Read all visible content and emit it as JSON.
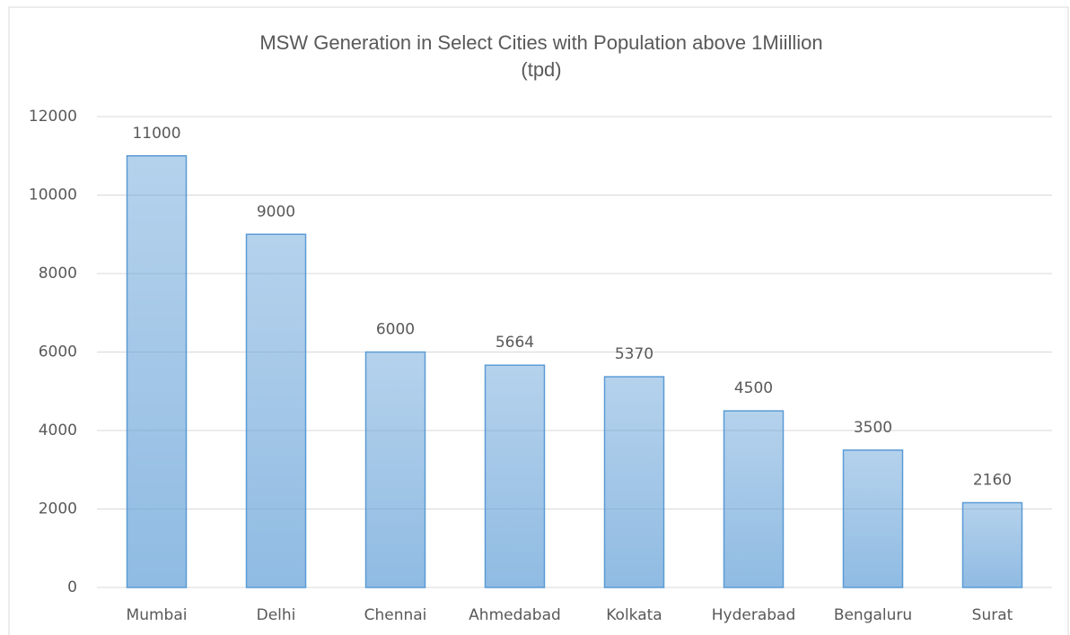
{
  "chart_data": {
    "type": "bar",
    "title": [
      "MSW Generation in Select Cities with Population above 1Miillion",
      "(tpd)"
    ],
    "categories": [
      "Mumbai",
      "Delhi",
      "Chennai",
      "Ahmedabad",
      "Kolkata",
      "Hyderabad",
      "Bengaluru",
      "Surat"
    ],
    "values": [
      11000,
      9000,
      6000,
      5664,
      5370,
      4500,
      3500,
      2160
    ],
    "color": "#5b9bd5",
    "ylim": [
      0,
      12000
    ],
    "yticks": [
      0,
      2000,
      4000,
      6000,
      8000,
      10000,
      12000
    ],
    "grid": true
  }
}
